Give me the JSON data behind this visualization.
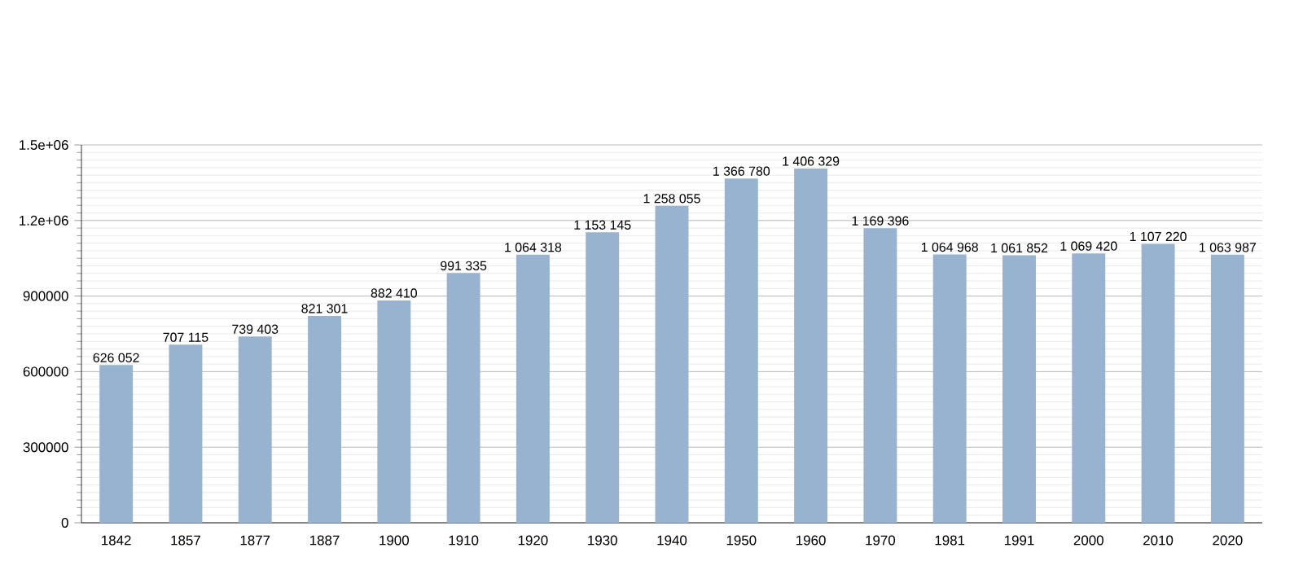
{
  "chart_data": {
    "type": "bar",
    "categories": [
      "1842",
      "1857",
      "1877",
      "1887",
      "1900",
      "1910",
      "1920",
      "1930",
      "1940",
      "1950",
      "1960",
      "1970",
      "1981",
      "1991",
      "2000",
      "2010",
      "2020"
    ],
    "values": [
      626052,
      707115,
      739403,
      821301,
      882410,
      991335,
      1064318,
      1153145,
      1258055,
      1366780,
      1406329,
      1169396,
      1064968,
      1061852,
      1069420,
      1107220,
      1063987
    ],
    "value_labels": [
      "626 052",
      "707 115",
      "739 403",
      "821 301",
      "882 410",
      "991 335",
      "1 064 318",
      "1 153 145",
      "1 258 055",
      "1 366 780",
      "1 406 329",
      "1 169 396",
      "1 064 968",
      "1 061 852",
      "1 069 420",
      "1 107 220",
      "1 063 987"
    ],
    "color": "#98b3cf",
    "ylim": [
      0,
      1500000
    ],
    "yticks": [
      0,
      300000,
      600000,
      900000,
      {
        "value": 1200000,
        "label": "1.2e+06"
      },
      {
        "value": 1500000,
        "label": "1.5e+06"
      }
    ],
    "grid": "y"
  }
}
